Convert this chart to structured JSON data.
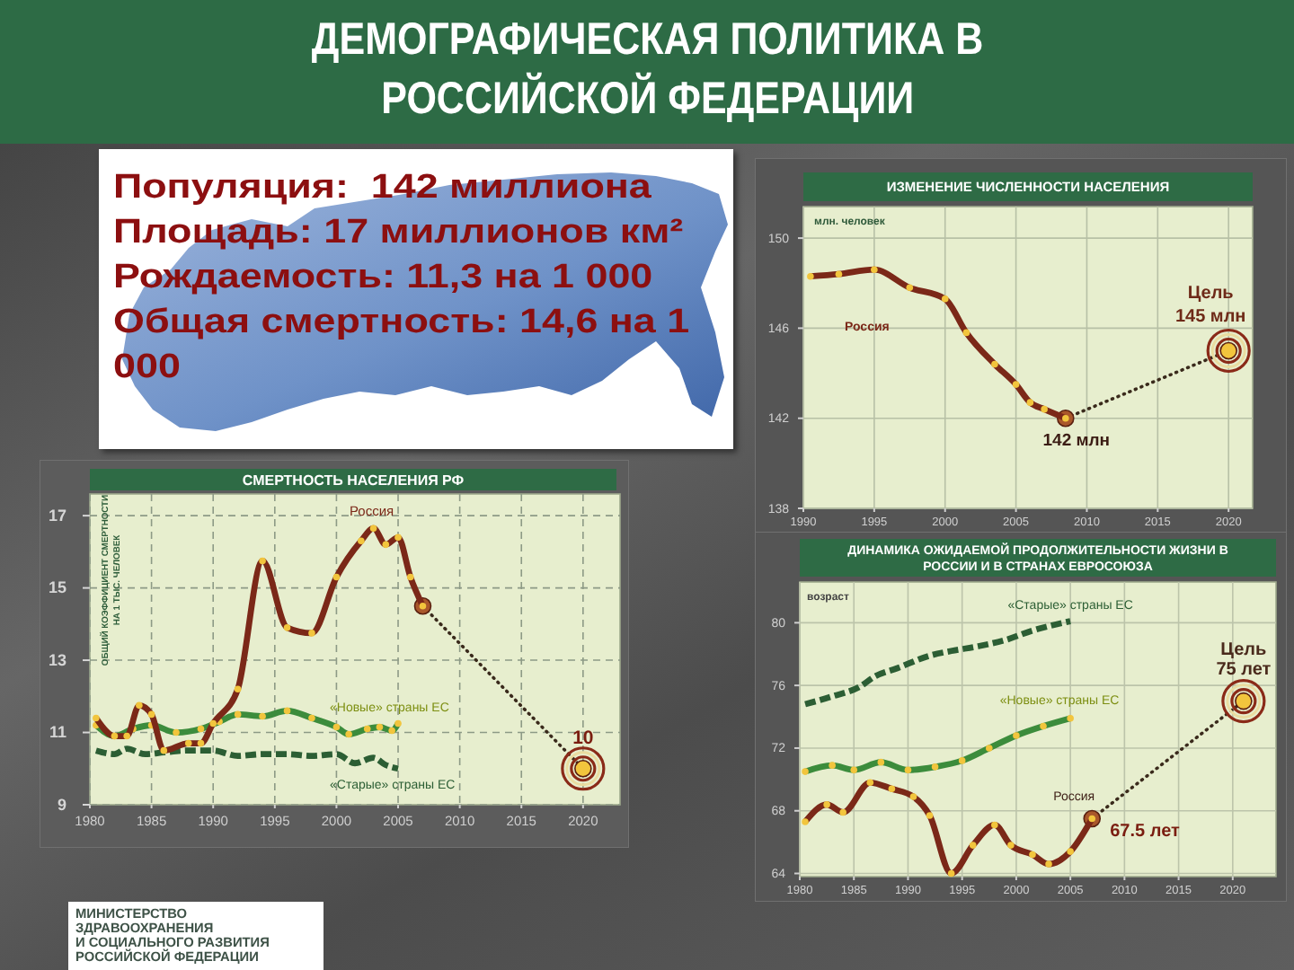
{
  "chart_data": [
    {
      "type": "other",
      "title": "ДЕМОГРАФИЧЕСКАЯ ПОЛИТИКА В\nРОССИЙСКОЙ ФЕДЕРАЦИИ",
      "annotations": [
        "Популяция:  142 миллиона",
        "Площадь: 17 миллионов км²",
        "Рождаемость: 11,3 на 1 000",
        "Общая смертность: 14,6 на 1 000",
        "МИНИСТЕРСТВО\nЗДРАВООХРАНЕНИЯ\nИ СОЦИАЛЬНОГО РАЗВИТИЯ\nРОССИЙСКОЙ ФЕДЕРАЦИИ"
      ]
    },
    {
      "type": "line",
      "title": "ИЗМЕНЕНИЕ ЧИСЛЕННОСТИ НАСЕЛЕНИЯ",
      "ylabel": "млн. человек",
      "xlim": [
        1990,
        2021.7
      ],
      "xticks": [
        1990,
        1995,
        2000,
        2005,
        2010,
        2015,
        2020
      ],
      "ylim": [
        138,
        151.4
      ],
      "yticks": [
        138,
        142,
        146,
        150
      ],
      "grid": true,
      "series": [
        {
          "type": "line",
          "color": "#3a2a1c",
          "line_style": "dotted",
          "marker": "circle",
          "x": [
            2008.5,
            2020
          ],
          "values": [
            142,
            145
          ]
        },
        {
          "name": "Россия",
          "color": "#7b2818",
          "marker": "circle",
          "x": [
            1990.5,
            1992.5,
            1995,
            1997.5,
            2000,
            2001.5,
            2003.5,
            2005,
            2006,
            2007,
            2008.5
          ],
          "values": [
            148.3,
            148.4,
            148.6,
            147.8,
            147.3,
            145.8,
            144.4,
            143.5,
            142.7,
            142.4,
            142
          ]
        }
      ],
      "annotations": [
        {
          "text": "142 млн",
          "x": 2008.5,
          "y": 142
        },
        {
          "text": "Цель\n145 млн",
          "x": 2020,
          "y": 145
        }
      ]
    },
    {
      "type": "line",
      "title": "СМЕРТНОСТЬ НАСЕЛЕНИЯ РФ",
      "ylabel": "ОБЩИЙ КОЭФФИЦИЕНТ СМЕРТНОСТИ\nНА 1 ТЫС. ЧЕЛОВЕК",
      "xlim": [
        1980,
        2023
      ],
      "xticks": [
        1980,
        1985,
        1990,
        1995,
        2000,
        2005,
        2010,
        2015,
        2020
      ],
      "ylim": [
        9,
        17.6
      ],
      "yticks": [
        9,
        11,
        13,
        15,
        17
      ],
      "grid": true,
      "series": [
        {
          "type": "line",
          "color": "#3a2a1c",
          "line_style": "dotted",
          "marker": "circle",
          "x": [
            2007,
            2020
          ],
          "values": [
            14.5,
            10
          ]
        },
        {
          "name": "«Старые» страны ЕС",
          "color": "#2c5e34",
          "line_style": "dashed",
          "x": [
            1980.5,
            1982,
            1983,
            1984.5,
            1986,
            1988,
            1990,
            1992,
            1994,
            1996,
            1998,
            2000,
            2001.5,
            2003,
            2004,
            2005
          ],
          "values": [
            10.5,
            10.4,
            10.55,
            10.4,
            10.45,
            10.5,
            10.5,
            10.35,
            10.4,
            10.4,
            10.35,
            10.4,
            10.15,
            10.3,
            10.1,
            10.0
          ]
        },
        {
          "name": "«Новые» страны ЕС",
          "color": "#3c8c3c",
          "marker": "circle",
          "x": [
            1980.5,
            1982,
            1983.5,
            1985,
            1987,
            1989,
            1990.5,
            1992,
            1994,
            1996,
            1998,
            2000,
            2001,
            2002.5,
            2003.5,
            2004.5,
            2005
          ],
          "values": [
            11.2,
            10.9,
            11.1,
            11.2,
            11.0,
            11.1,
            11.3,
            11.5,
            11.45,
            11.6,
            11.4,
            11.15,
            10.95,
            11.1,
            11.15,
            11.05,
            11.25
          ]
        },
        {
          "name": "Россия",
          "color": "#7b2818",
          "marker": "circle",
          "x": [
            1980.5,
            1982,
            1983,
            1984,
            1985,
            1986,
            1988,
            1989,
            1990,
            1992,
            1994,
            1996,
            1998,
            2000,
            2002,
            2003,
            2004,
            2005,
            2006,
            2007
          ],
          "values": [
            11.4,
            10.9,
            10.9,
            11.75,
            11.5,
            10.5,
            10.7,
            10.7,
            11.25,
            12.2,
            15.75,
            13.9,
            13.75,
            15.3,
            16.3,
            16.65,
            16.2,
            16.4,
            15.3,
            14.5
          ]
        }
      ],
      "annotations": [
        {
          "text": "10",
          "x": 2020,
          "y": 10
        }
      ]
    },
    {
      "type": "line",
      "title": "ДИНАМИКА ОЖИДАЕМОЙ ПРОДОЛЖИТЕЛЬНОСТИ ЖИЗНИ В\nРОССИИ И В СТРАНАХ ЕВРОСОЮЗА",
      "ylabel": "возраст",
      "xlim": [
        1980,
        2024
      ],
      "xticks": [
        1980,
        1985,
        1990,
        1995,
        2000,
        2005,
        2010,
        2015,
        2020
      ],
      "ylim": [
        63.8,
        82.6
      ],
      "yticks": [
        64,
        68,
        72,
        76,
        80
      ],
      "grid": true,
      "series": [
        {
          "type": "line",
          "color": "#3a2a1c",
          "line_style": "dotted",
          "marker": "circle",
          "x": [
            2007,
            2021
          ],
          "values": [
            67.5,
            75
          ]
        },
        {
          "name": "«Старые» страны ЕС",
          "color": "#2c5e34",
          "line_style": "dashed",
          "x": [
            1980.5,
            1983,
            1985.5,
            1987,
            1989,
            1992,
            1994,
            1996.5,
            1999,
            2001.5,
            2005
          ],
          "values": [
            74.8,
            75.3,
            75.9,
            76.6,
            77.1,
            77.9,
            78.2,
            78.5,
            78.9,
            79.5,
            80.1
          ]
        },
        {
          "name": "«Новые» страны ЕС",
          "color": "#3c8c3c",
          "marker": "circle",
          "x": [
            1980.5,
            1983,
            1985,
            1987.5,
            1990,
            1992.5,
            1995,
            1997.5,
            2000,
            2002.5,
            2005
          ],
          "values": [
            70.5,
            70.9,
            70.6,
            71.1,
            70.6,
            70.8,
            71.2,
            72.0,
            72.8,
            73.4,
            73.9
          ]
        },
        {
          "name": "Россия",
          "color": "#7b2818",
          "marker": "circle",
          "x": [
            1980.5,
            1982.5,
            1984,
            1986.5,
            1988.5,
            1990.5,
            1992,
            1994,
            1996,
            1998,
            1999.5,
            2001.5,
            2003,
            2005,
            2007
          ],
          "values": [
            67.3,
            68.4,
            67.9,
            69.8,
            69.4,
            68.9,
            67.7,
            64.0,
            65.8,
            67.1,
            65.8,
            65.2,
            64.6,
            65.4,
            67.5
          ]
        }
      ],
      "annotations": [
        {
          "text": "67.5 лет",
          "x": 2007,
          "y": 67.5
        },
        {
          "text": "Цель\n75 лет",
          "x": 2021,
          "y": 75
        }
      ]
    }
  ]
}
